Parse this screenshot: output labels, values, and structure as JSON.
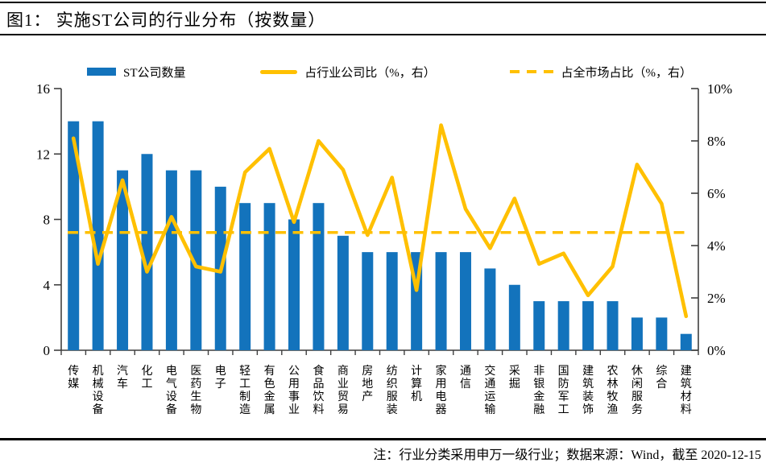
{
  "header": {
    "title": "图1： 实施ST公司的行业分布（按数量）"
  },
  "legend": {
    "items": [
      {
        "label": "ST公司数量",
        "marker": "bar-swatch",
        "color": "#1373BC"
      },
      {
        "label": "占行业公司比（%，右）",
        "marker": "line-swatch",
        "color": "#FFC000"
      },
      {
        "label": "占全市场占比（%，右）",
        "marker": "dashed-line-swatch",
        "color": "#FFC000"
      }
    ]
  },
  "footer": {
    "note": "注：行业分类采用申万一级行业；数据来源：Wind，截至 2020-12-15"
  },
  "colors": {
    "bar": "#1373BC",
    "line": "#FFC000",
    "axis": "#3F3F3F",
    "text": "#000000"
  },
  "chart_data": {
    "type": "bar",
    "title": "实施ST公司的行业分布（按数量）",
    "categories": [
      "传媒",
      "机械设备",
      "汽车",
      "化工",
      "电气设备",
      "医药生物",
      "电子",
      "轻工制造",
      "有色金属",
      "公用事业",
      "食品饮料",
      "商业贸易",
      "房地产",
      "纺织服装",
      "计算机",
      "家用电器",
      "通信",
      "交通运输",
      "采掘",
      "非银金融",
      "国防军工",
      "建筑装饰",
      "农林牧渔",
      "休闲服务",
      "综合",
      "建筑材料"
    ],
    "series": [
      {
        "name": "ST公司数量",
        "type": "bar",
        "axis": "left",
        "values": [
          14,
          14,
          11,
          12,
          11,
          11,
          10,
          9,
          9,
          8,
          9,
          7,
          6,
          6,
          6,
          6,
          6,
          5,
          4,
          3,
          3,
          3,
          3,
          2,
          2,
          1
        ]
      },
      {
        "name": "占行业公司比（%，右）",
        "type": "line",
        "axis": "right",
        "values": [
          8.1,
          3.3,
          6.5,
          3.0,
          5.1,
          3.2,
          3.0,
          6.8,
          7.7,
          4.9,
          8.0,
          6.9,
          4.4,
          6.6,
          2.3,
          8.6,
          5.4,
          3.9,
          5.8,
          3.3,
          3.7,
          2.1,
          3.2,
          7.1,
          5.6,
          1.3
        ]
      },
      {
        "name": "占全市场占比（%，右）",
        "type": "dashed-constant-line",
        "axis": "right",
        "value": 4.5
      }
    ],
    "left_axis": {
      "label": "",
      "ticks": [
        0,
        4,
        8,
        12,
        16
      ],
      "min": 0,
      "max": 16
    },
    "right_axis": {
      "label": "",
      "ticks": [
        "0%",
        "2%",
        "4%",
        "6%",
        "8%",
        "10%"
      ],
      "min": 0,
      "max": 10
    },
    "grid": false,
    "legend_position": "top"
  }
}
